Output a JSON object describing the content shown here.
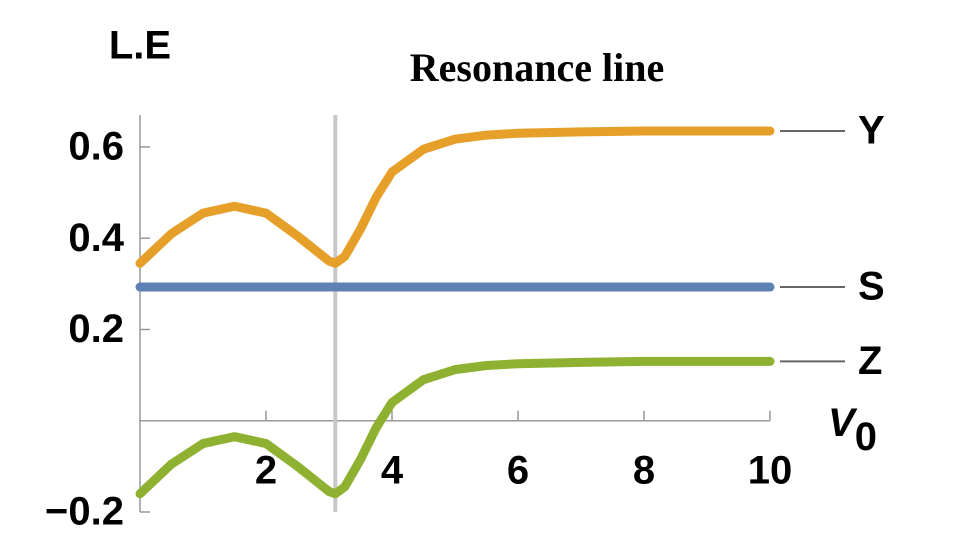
{
  "chart_data": {
    "type": "line",
    "title": "Resonance line",
    "y_label": "L.E",
    "x_label": {
      "main": "V",
      "subscript": "0"
    },
    "x": [
      0,
      0.5,
      1,
      1.5,
      2,
      2.5,
      3,
      3.1,
      3.25,
      3.5,
      3.75,
      4,
      4.5,
      5,
      5.5,
      6,
      7,
      8,
      9,
      10
    ],
    "series": [
      {
        "name": "Y",
        "color": "#e6a02a",
        "values": [
          0.345,
          0.41,
          0.455,
          0.47,
          0.455,
          0.405,
          0.35,
          0.345,
          0.36,
          0.42,
          0.49,
          0.545,
          0.595,
          0.617,
          0.626,
          0.63,
          0.633,
          0.635,
          0.635,
          0.635
        ]
      },
      {
        "name": "S",
        "color": "#5e81b5",
        "values": [
          0.293,
          0.293,
          0.293,
          0.293,
          0.293,
          0.293,
          0.293,
          0.293,
          0.293,
          0.293,
          0.293,
          0.293,
          0.293,
          0.293,
          0.293,
          0.293,
          0.293,
          0.293,
          0.293,
          0.293
        ]
      },
      {
        "name": "Z",
        "color": "#8fb131",
        "values": [
          -0.16,
          -0.095,
          -0.05,
          -0.035,
          -0.05,
          -0.1,
          -0.155,
          -0.16,
          -0.145,
          -0.085,
          -0.015,
          0.04,
          0.09,
          0.112,
          0.121,
          0.125,
          0.128,
          0.13,
          0.13,
          0.13
        ]
      }
    ],
    "resonance_x": 3.1,
    "xlim": [
      0,
      10
    ],
    "xticks": [
      2,
      4,
      6,
      8,
      10
    ],
    "ylim": [
      -0.2,
      0.67
    ],
    "yticks": [
      {
        "value": -0.2,
        "label": "−0.2"
      },
      0.2,
      0.4,
      0.6
    ]
  }
}
